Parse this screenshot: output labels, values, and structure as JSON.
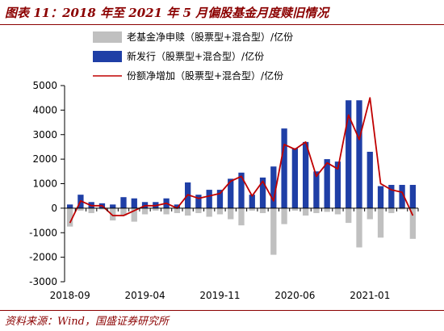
{
  "header": {
    "title": "图表 11：2018 年至 2021 年 5 月偏股基金月度赎旧情况"
  },
  "footer": {
    "source": "资料来源：Wind，国盛证券研究所"
  },
  "colors": {
    "accent": "#8b0000",
    "redemption": "#c0c0c0",
    "new_issue": "#1f3fa6",
    "net_increase": "#c00000"
  },
  "chart_data": {
    "type": "bar",
    "title": "",
    "xlabel": "",
    "ylabel": "",
    "ylim": [
      -3000,
      5000
    ],
    "yticks": [
      -3000,
      -2000,
      -1000,
      0,
      1000,
      2000,
      3000,
      4000,
      5000
    ],
    "xtick_labels": [
      "2018-09",
      "2019-04",
      "2019-11",
      "2020-06",
      "2021-01"
    ],
    "xtick_indices": [
      0,
      7,
      14,
      21,
      28
    ],
    "grid": false,
    "legend_position": "top",
    "categories": [
      "2018-09",
      "2018-10",
      "2018-11",
      "2018-12",
      "2019-01",
      "2019-02",
      "2019-03",
      "2019-04",
      "2019-05",
      "2019-06",
      "2019-07",
      "2019-08",
      "2019-09",
      "2019-10",
      "2019-11",
      "2019-12",
      "2020-01",
      "2020-02",
      "2020-03",
      "2020-04",
      "2020-05",
      "2020-06",
      "2020-07",
      "2020-08",
      "2020-09",
      "2020-10",
      "2020-11",
      "2020-12",
      "2021-01",
      "2021-02",
      "2021-03",
      "2021-04",
      "2021-05"
    ],
    "series": [
      {
        "name": "老基金净申赎（股票型+混合型）/亿份",
        "kind": "bar",
        "values": [
          -750,
          -100,
          -200,
          -50,
          -500,
          -300,
          -550,
          -250,
          -100,
          -250,
          -200,
          -300,
          -200,
          -350,
          -250,
          -450,
          -700,
          -100,
          -200,
          -1900,
          -650,
          -100,
          -300,
          -200,
          -150,
          -250,
          -600,
          -1600,
          -450,
          -1200,
          -200,
          -50,
          -1250
        ]
      },
      {
        "name": "新发行（股票型+混合型）/亿份",
        "kind": "bar",
        "values": [
          150,
          550,
          250,
          200,
          150,
          450,
          400,
          250,
          250,
          400,
          150,
          1050,
          550,
          750,
          750,
          1200,
          1450,
          550,
          1250,
          1700,
          3250,
          2450,
          2700,
          1500,
          2000,
          1900,
          4400,
          4400,
          2300,
          900,
          950,
          950,
          950
        ]
      },
      {
        "name": "份额净增加（股票型+混合型）/亿份",
        "kind": "line",
        "values": [
          -600,
          300,
          100,
          100,
          -300,
          -300,
          -100,
          100,
          100,
          200,
          0,
          550,
          400,
          500,
          600,
          1100,
          1300,
          500,
          1100,
          300,
          2600,
          2400,
          2700,
          1300,
          1850,
          1600,
          3800,
          2800,
          4500,
          1000,
          750,
          650,
          -300
        ]
      }
    ]
  }
}
